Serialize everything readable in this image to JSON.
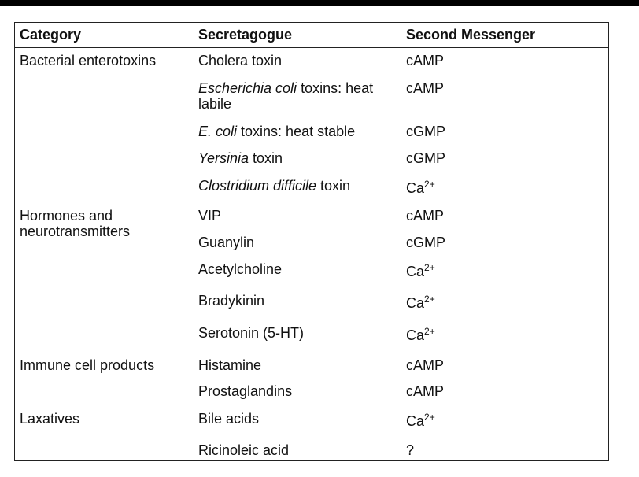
{
  "headers": {
    "category": "Category",
    "secretagogue": "Secretagogue",
    "messenger": "Second Messenger"
  },
  "categories": [
    {
      "label": "Bacterial enterotoxins"
    },
    {
      "label": "Hormones and neurotransmitters"
    },
    {
      "label": "Immune cell products"
    },
    {
      "label": "Laxatives"
    }
  ],
  "rows": [
    {
      "sec_italic": "",
      "sec_plain": "Cholera toxin",
      "messenger": "cAMP",
      "sup": ""
    },
    {
      "sec_italic": "Escherichia coli",
      "sec_plain": " toxins: heat labile",
      "messenger": "cAMP",
      "sup": ""
    },
    {
      "sec_italic": "E. coli",
      "sec_plain": " toxins: heat stable",
      "messenger": "cGMP",
      "sup": ""
    },
    {
      "sec_italic": "Yersinia",
      "sec_plain": " toxin",
      "messenger": "cGMP",
      "sup": ""
    },
    {
      "sec_italic": "Clostridium difficile",
      "sec_plain": " toxin",
      "messenger": "Ca",
      "sup": "2+"
    },
    {
      "sec_italic": "",
      "sec_plain": "VIP",
      "messenger": "cAMP",
      "sup": ""
    },
    {
      "sec_italic": "",
      "sec_plain": "Guanylin",
      "messenger": "cGMP",
      "sup": ""
    },
    {
      "sec_italic": "",
      "sec_plain": "Acetylcholine",
      "messenger": "Ca",
      "sup": "2+"
    },
    {
      "sec_italic": "",
      "sec_plain": "Bradykinin",
      "messenger": "Ca",
      "sup": "2+"
    },
    {
      "sec_italic": "",
      "sec_plain": "Serotonin (5-HT)",
      "messenger": "Ca",
      "sup": "2+"
    },
    {
      "sec_italic": "",
      "sec_plain": "Histamine",
      "messenger": "cAMP",
      "sup": ""
    },
    {
      "sec_italic": "",
      "sec_plain": "Prostaglandins",
      "messenger": "cAMP",
      "sup": ""
    },
    {
      "sec_italic": "",
      "sec_plain": "Bile acids",
      "messenger": "Ca",
      "sup": "2+"
    },
    {
      "sec_italic": "",
      "sec_plain": "Ricinoleic acid",
      "messenger": "?",
      "sup": ""
    }
  ]
}
